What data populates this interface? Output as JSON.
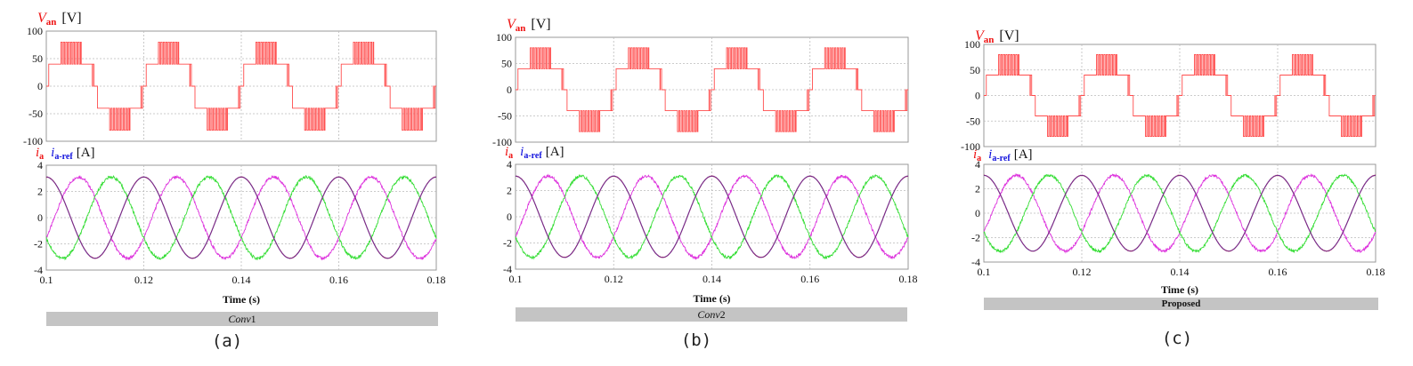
{
  "chart_data": [
    {
      "panel": "(a)",
      "caption": "(a)",
      "method_label": "Conv1",
      "method_label_italic_part": "Conv",
      "method_label_plain_part": "1",
      "voltage_plot": {
        "type": "line",
        "title_var": "V",
        "title_sub": "an",
        "title_unit": "[V]",
        "ylim": [
          -100,
          100
        ],
        "yticks": [
          "100",
          "50",
          "0",
          "-50",
          "-100"
        ],
        "xlim": [
          0.1,
          0.18
        ],
        "grid": true,
        "series": [
          {
            "color": "#ff4d4d",
            "waveform": "5-level staircase with PWM chopping",
            "amplitude": 80,
            "frequency_hz": 50,
            "phase_deg": 0
          }
        ]
      },
      "current_plot": {
        "type": "line",
        "title_var": "i",
        "title_sub": "a",
        "title_var2": "i",
        "title_sub2": "a-ref",
        "title_unit": "[A]",
        "ylim": [
          -4,
          4
        ],
        "yticks": [
          "4",
          "2",
          "0",
          "-2",
          "-4"
        ],
        "xlim": [
          0.1,
          0.18
        ],
        "xticks": [
          "0.1",
          "0.12",
          "0.14",
          "0.16",
          "0.18"
        ],
        "xlabel": "Time (s)",
        "grid": true,
        "series": [
          {
            "color": "#dd33dd",
            "amplitude": 3.1,
            "frequency_hz": 50,
            "phase_deg": 120
          },
          {
            "color": "#33dd33",
            "amplitude": 3.1,
            "frequency_hz": 50,
            "phase_deg": 240
          },
          {
            "color": "#2222cc",
            "amplitude": 3.1,
            "frequency_hz": 50,
            "phase_deg": 0
          },
          {
            "color": "#cc3344",
            "amplitude": 3.1,
            "frequency_hz": 50,
            "phase_deg": 0
          }
        ]
      }
    },
    {
      "panel": "(b)",
      "caption": "(b)",
      "method_label": "Conv2",
      "method_label_italic_part": "Conv",
      "method_label_plain_part": "2",
      "voltage_plot": {
        "type": "line",
        "title_var": "V",
        "title_sub": "an",
        "title_unit": "[V]",
        "ylim": [
          -100,
          100
        ],
        "yticks": [
          "100",
          "50",
          "0",
          "-50",
          "-100"
        ],
        "xlim": [
          0.1,
          0.18
        ],
        "grid": true,
        "series": [
          {
            "color": "#ff4d4d",
            "waveform": "5-level staircase with PWM chopping",
            "amplitude": 80,
            "frequency_hz": 50,
            "phase_deg": 0
          }
        ]
      },
      "current_plot": {
        "type": "line",
        "title_var": "i",
        "title_sub": "a",
        "title_var2": "i",
        "title_sub2": "a-ref",
        "title_unit": "[A]",
        "ylim": [
          -4,
          4
        ],
        "yticks": [
          "4",
          "2",
          "0",
          "-2",
          "-4"
        ],
        "xlim": [
          0.1,
          0.18
        ],
        "xticks": [
          "0.1",
          "0.12",
          "0.14",
          "0.16",
          "0.18"
        ],
        "xlabel": "Time (s)",
        "grid": true,
        "series": [
          {
            "color": "#dd33dd",
            "amplitude": 3.1,
            "frequency_hz": 50,
            "phase_deg": 120
          },
          {
            "color": "#33dd33",
            "amplitude": 3.1,
            "frequency_hz": 50,
            "phase_deg": 240
          },
          {
            "color": "#2222cc",
            "amplitude": 3.1,
            "frequency_hz": 50,
            "phase_deg": 0
          },
          {
            "color": "#cc3344",
            "amplitude": 3.1,
            "frequency_hz": 50,
            "phase_deg": 0
          }
        ]
      }
    },
    {
      "panel": "(c)",
      "caption": "(c)",
      "method_label": "Proposed",
      "method_label_italic_part": "",
      "method_label_plain_part": "Proposed",
      "voltage_plot": {
        "type": "line",
        "title_var": "V",
        "title_sub": "an",
        "title_unit": "[V]",
        "ylim": [
          -100,
          100
        ],
        "yticks": [
          "100",
          "50",
          "0",
          "-50",
          "-100"
        ],
        "xlim": [
          0.1,
          0.18
        ],
        "grid": true,
        "series": [
          {
            "color": "#ff4d4d",
            "waveform": "5-level staircase with PWM chopping",
            "amplitude": 80,
            "frequency_hz": 50,
            "phase_deg": 0
          }
        ]
      },
      "current_plot": {
        "type": "line",
        "title_var": "i",
        "title_sub": "a",
        "title_var2": "i",
        "title_sub2": "a-ref",
        "title_unit": "[A]",
        "ylim": [
          -4,
          4
        ],
        "yticks": [
          "4",
          "2",
          "0",
          "-2",
          "-4"
        ],
        "xlim": [
          0.1,
          0.18
        ],
        "xticks": [
          "0.1",
          "0.12",
          "0.14",
          "0.16",
          "0.18"
        ],
        "xlabel": "Time (s)",
        "grid": true,
        "series": [
          {
            "color": "#dd33dd",
            "amplitude": 3.1,
            "frequency_hz": 50,
            "phase_deg": 120
          },
          {
            "color": "#33dd33",
            "amplitude": 3.1,
            "frequency_hz": 50,
            "phase_deg": 240
          },
          {
            "color": "#2222cc",
            "amplitude": 3.1,
            "frequency_hz": 50,
            "phase_deg": 0
          },
          {
            "color": "#cc3344",
            "amplitude": 3.1,
            "frequency_hz": 50,
            "phase_deg": 0
          }
        ]
      }
    }
  ],
  "colors": {
    "title_red": "#ee1111",
    "title_blue": "#1111dd",
    "label_bar": "#c4c4c4",
    "grid": "#bbbbbb",
    "frame": "#999999"
  }
}
